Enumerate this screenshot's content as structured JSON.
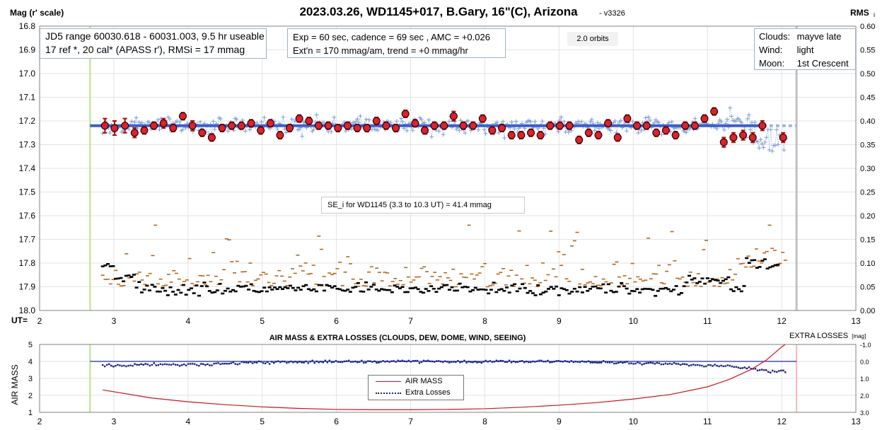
{
  "title": "2023.03.26, WD1145+017, B.Gary, 16\"(C), Arizona",
  "version": "- v3326",
  "labels": {
    "mag_axis": "Mag (r' scale)",
    "rms_axis": "RMS",
    "rms_sub": "i",
    "ut_label": "UT=",
    "airmass_axis": "AIR MASS",
    "lower_title": "AIR MASS & EXTRA LOSSES (CLOUDS, DEW, DOME, WIND, SEEING)",
    "extra_losses_axis": "EXTRA LOSSES",
    "extra_losses_unit": "[mag]"
  },
  "info_box": {
    "line1": "JD5 range 60030.618 - 60031.003, 9.5 hr useable",
    "line2": "17 ref *, 20 cal*  (APASS r'), RMSi = 17 mmag"
  },
  "exp_box": {
    "line1": "Exp = 60 sec, cadence = 69 sec , AMC = +0.026",
    "line2": "Ext'n = 170 mmag/am, trend = +0 mmag/hr"
  },
  "conditions": {
    "clouds_label": "Clouds:",
    "clouds_value": "mayve late",
    "wind_label": "Wind:",
    "wind_value": "light",
    "moon_label": "Moon:",
    "moon_value": "1st Crescent"
  },
  "orbits_label": "2.0 orbits",
  "se_text": "SE_i for WD1145 (3.3 to 10.3 UT) = 41.4 mmag",
  "legend": {
    "air_mass": "AIR MASS",
    "extra_losses": "Extra Losses"
  },
  "colors": {
    "model_line": "#3a5fcd",
    "individual": "#7f9fd6",
    "binned_fill": "#e0202a",
    "rms_orange": "#b8651b",
    "rms_black": "#000000",
    "air_mass": "#c8161d",
    "extra_losses": "#1a237e",
    "ut_start": "#b9e08f",
    "ut_end": "#c0c0c0",
    "ut_end_lower": "#f5b8b8",
    "zero_line": "#1f2f8f"
  },
  "chart_data": [
    {
      "type": "scatter",
      "name": "light curve",
      "xlabel": "UT",
      "ylabel": "Mag (r' scale)",
      "xlim": [
        2,
        13
      ],
      "ylim": [
        16.8,
        18.0
      ],
      "y_inverted": true,
      "x_ticks": [
        2,
        3,
        4,
        5,
        6,
        7,
        8,
        9,
        10,
        11,
        12,
        13
      ],
      "y_ticks": [
        16.8,
        16.9,
        17.0,
        17.1,
        17.2,
        17.3,
        17.4,
        17.5,
        17.6,
        17.7,
        17.8,
        17.9,
        18.0
      ],
      "y2label": "RMS i",
      "y2lim": [
        0.0,
        0.6
      ],
      "y2_ticks": [
        0.0,
        0.05,
        0.1,
        0.15,
        0.2,
        0.25,
        0.3,
        0.35,
        0.4,
        0.45,
        0.5,
        0.55,
        0.6
      ],
      "ut_start": 2.68,
      "ut_end": 12.2,
      "model_level": 17.22,
      "model_x_range": [
        2.68,
        11.75
      ],
      "model_dashed_x_range": [
        11.75,
        12.2
      ],
      "binned": {
        "x": [
          2.88,
          3.01,
          3.15,
          3.28,
          3.41,
          3.54,
          3.67,
          3.8,
          3.93,
          4.06,
          4.19,
          4.32,
          4.46,
          4.59,
          4.72,
          4.85,
          4.98,
          5.11,
          5.24,
          5.37,
          5.5,
          5.63,
          5.76,
          5.89,
          6.02,
          6.15,
          6.28,
          6.41,
          6.54,
          6.67,
          6.8,
          6.93,
          7.06,
          7.19,
          7.32,
          7.45,
          7.58,
          7.71,
          7.84,
          7.97,
          8.1,
          8.23,
          8.36,
          8.49,
          8.62,
          8.75,
          8.88,
          9.01,
          9.14,
          9.27,
          9.4,
          9.53,
          9.66,
          9.79,
          9.92,
          10.05,
          10.18,
          10.31,
          10.44,
          10.57,
          10.7,
          10.83,
          10.96,
          11.09,
          11.22,
          11.35,
          11.48,
          11.61,
          11.74,
          12.02
        ],
        "y": [
          17.22,
          17.23,
          17.22,
          17.25,
          17.24,
          17.22,
          17.21,
          17.23,
          17.18,
          17.22,
          17.25,
          17.27,
          17.23,
          17.22,
          17.22,
          17.21,
          17.24,
          17.21,
          17.26,
          17.23,
          17.19,
          17.2,
          17.22,
          17.22,
          17.23,
          17.22,
          17.23,
          17.23,
          17.2,
          17.22,
          17.23,
          17.17,
          17.21,
          17.24,
          17.22,
          17.22,
          17.18,
          17.22,
          17.22,
          17.19,
          17.24,
          17.23,
          17.26,
          17.26,
          17.25,
          17.26,
          17.22,
          17.22,
          17.22,
          17.28,
          17.25,
          17.26,
          17.21,
          17.27,
          17.19,
          17.22,
          17.22,
          17.25,
          17.24,
          17.26,
          17.22,
          17.22,
          17.19,
          17.16,
          17.29,
          17.27,
          17.26,
          17.27,
          17.22,
          17.27
        ],
        "err": [
          0.03,
          0.03,
          0.03,
          0.02,
          0.015,
          0.015,
          0.02,
          0.015,
          0.015,
          0.02,
          0.015,
          0.015,
          0.015,
          0.015,
          0.015,
          0.015,
          0.015,
          0.015,
          0.015,
          0.015,
          0.015,
          0.015,
          0.015,
          0.015,
          0.015,
          0.015,
          0.015,
          0.015,
          0.015,
          0.015,
          0.015,
          0.015,
          0.015,
          0.015,
          0.015,
          0.015,
          0.02,
          0.015,
          0.015,
          0.015,
          0.015,
          0.015,
          0.015,
          0.015,
          0.015,
          0.015,
          0.015,
          0.015,
          0.015,
          0.015,
          0.015,
          0.015,
          0.015,
          0.015,
          0.015,
          0.015,
          0.015,
          0.015,
          0.015,
          0.015,
          0.015,
          0.015,
          0.015,
          0.015,
          0.02,
          0.02,
          0.02,
          0.02,
          0.02,
          0.02
        ]
      },
      "individual": {
        "x_range": [
          2.85,
          12.05
        ],
        "count": 470,
        "baseline_mag": 17.22,
        "rms_mag": 0.045
      },
      "rms_series": {
        "orange_level": 0.06,
        "black_level": 0.045,
        "black_late_level": 0.1
      }
    },
    {
      "type": "line",
      "name": "air mass and extra losses",
      "xlabel": "UT",
      "xlim": [
        2,
        13
      ],
      "ylabel": "AIR MASS",
      "ylim": [
        1,
        5
      ],
      "x_ticks": [
        2,
        3,
        4,
        5,
        6,
        7,
        8,
        9,
        10,
        11,
        12,
        13
      ],
      "y_ticks": [
        1,
        2,
        3,
        4,
        5
      ],
      "y2label": "EXTRA LOSSES [mag]",
      "y2lim": [
        3.0,
        -1.0
      ],
      "y2_ticks": [
        "-1.0",
        "0.0",
        "1.0",
        "2.0",
        "3.0"
      ],
      "ut_start": 2.68,
      "ut_end": 12.2,
      "series": [
        {
          "name": "AIR MASS",
          "x": [
            2.85,
            3.5,
            4.0,
            4.5,
            5.0,
            5.5,
            6.0,
            6.5,
            7.0,
            7.5,
            8.0,
            8.5,
            9.0,
            9.5,
            10.0,
            10.5,
            11.0,
            11.3,
            11.6,
            11.8,
            12.0,
            12.05
          ],
          "values": [
            2.32,
            1.85,
            1.62,
            1.45,
            1.32,
            1.23,
            1.17,
            1.15,
            1.15,
            1.17,
            1.21,
            1.3,
            1.42,
            1.57,
            1.78,
            2.05,
            2.5,
            2.95,
            3.55,
            4.1,
            4.85,
            5.0
          ]
        },
        {
          "name": "Extra Losses",
          "x": [
            2.85,
            3.0,
            3.5,
            4.0,
            5.0,
            6.0,
            7.0,
            8.0,
            9.0,
            10.0,
            10.5,
            11.0,
            11.3,
            11.5,
            11.7,
            11.9,
            12.05
          ],
          "values": [
            0.22,
            0.25,
            0.18,
            0.2,
            0.05,
            0.02,
            0.0,
            0.02,
            0.0,
            0.08,
            0.12,
            0.25,
            0.25,
            0.4,
            0.5,
            0.62,
            0.55
          ]
        }
      ]
    }
  ]
}
